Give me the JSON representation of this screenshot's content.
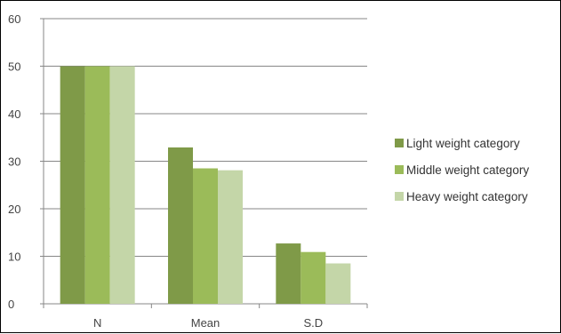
{
  "chart_data": {
    "type": "bar",
    "title": "",
    "xlabel": "",
    "ylabel": "",
    "categories": [
      "N",
      "Mean",
      "S.D"
    ],
    "series": [
      {
        "name": "Light weight category",
        "values": [
          50,
          32.9,
          12.7
        ],
        "color": "#7f9a48"
      },
      {
        "name": "Middle weight category",
        "values": [
          50,
          28.5,
          10.9
        ],
        "color": "#9bbb59"
      },
      {
        "name": "Heavy weight category",
        "values": [
          50,
          28.1,
          8.5
        ],
        "color": "#c4d6a8"
      }
    ],
    "ylim": [
      0,
      60
    ],
    "yticks": [
      0,
      10,
      20,
      30,
      40,
      50,
      60
    ],
    "grid": true,
    "legend_position": "right",
    "colors": {
      "grid": "#878787",
      "axis": "#878787"
    }
  }
}
